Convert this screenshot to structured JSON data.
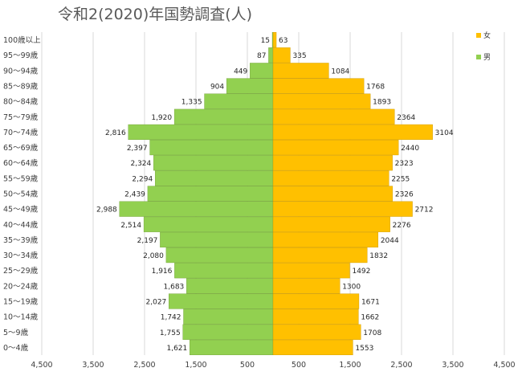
{
  "chart_data": {
    "type": "bar",
    "orientation": "horizontal",
    "layout": "population-pyramid",
    "title": "令和2(2020)年国勢調査(人)",
    "categories": [
      "100歳以上",
      "95～99歳",
      "90～94歳",
      "85～89歳",
      "80～84歳",
      "75～79歳",
      "70～74歳",
      "65～69歳",
      "60～64歳",
      "55～59歳",
      "50～54歳",
      "45～49歳",
      "40～44歳",
      "35～39歳",
      "30～34歳",
      "25～29歳",
      "20～24歳",
      "15～19歳",
      "10～14歳",
      "5～9歳",
      "0～4歳"
    ],
    "series": [
      {
        "name": "男",
        "color": "#92D050",
        "side": "left",
        "values": [
          15,
          87,
          449,
          904,
          1335,
          1920,
          2816,
          2397,
          2324,
          2294,
          2439,
          2988,
          2514,
          2197,
          2080,
          1916,
          1683,
          2027,
          1742,
          1755,
          1621
        ],
        "labels": [
          "15",
          "87",
          "449",
          "904",
          "1,335",
          "1,920",
          "2,816",
          "2,397",
          "2,324",
          "2,294",
          "2,439",
          "2,988",
          "2,514",
          "2,197",
          "2,080",
          "1,916",
          "1,683",
          "2,027",
          "1,742",
          "1,755",
          "1,621"
        ]
      },
      {
        "name": "女",
        "color": "#FFC000",
        "side": "right",
        "values": [
          63,
          335,
          1084,
          1768,
          1893,
          2364,
          3104,
          2440,
          2323,
          2255,
          2326,
          2712,
          2276,
          2044,
          1832,
          1492,
          1300,
          1671,
          1662,
          1708,
          1553
        ],
        "labels": [
          "63",
          "335",
          "1084",
          "1768",
          "1893",
          "2364",
          "3104",
          "2440",
          "2323",
          "2255",
          "2326",
          "2712",
          "2276",
          "2044",
          "1832",
          "1492",
          "1300",
          "1671",
          "1662",
          "1708",
          "1553"
        ]
      }
    ],
    "x_ticks": [
      "4,500",
      "3,500",
      "2,500",
      "1,500",
      "500",
      "500",
      "1,500",
      "2,500",
      "3,500",
      "4,500"
    ],
    "x_tick_values": [
      -4500,
      -3500,
      -2500,
      -1500,
      -500,
      500,
      1500,
      2500,
      3500,
      4500
    ],
    "xlim": [
      -4500,
      4500
    ],
    "grid": "vertical",
    "legend_position": "top-right",
    "xlabel": "",
    "ylabel": ""
  }
}
